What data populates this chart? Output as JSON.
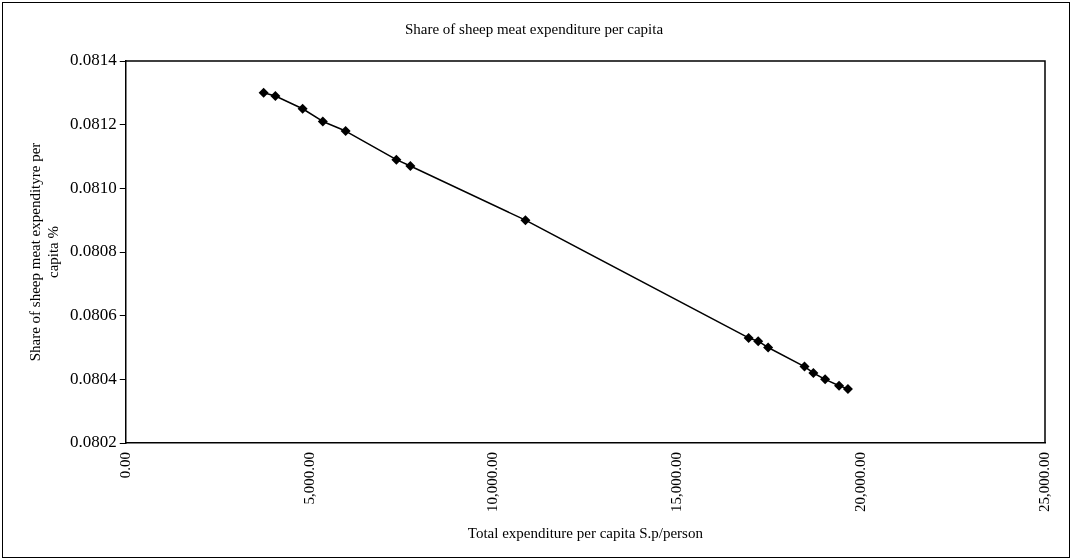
{
  "chart_data": {
    "type": "line",
    "title": "Share of sheep meat expenditure per capita",
    "xlabel": "Total expenditure per capita S.p/person",
    "ylabel": "Share of sheep meat expendityre per capita %",
    "series": [
      {
        "color": "#000000",
        "x": [
          3750,
          4070,
          4810,
          5360,
          5980,
          7360,
          7740,
          10870,
          16940,
          17200,
          17470,
          18460,
          18700,
          19020,
          19400,
          19640
        ],
        "values": [
          0.0813,
          0.08129,
          0.08125,
          0.08121,
          0.08118,
          0.08109,
          0.08107,
          0.0809,
          0.08053,
          0.08052,
          0.0805,
          0.08044,
          0.08042,
          0.0804,
          0.08038,
          0.08037
        ]
      }
    ],
    "xlim": [
      0,
      25000
    ],
    "xticks": [
      {
        "value": 0,
        "label": "0.00"
      },
      {
        "value": 5000,
        "label": "5,000.00"
      },
      {
        "value": 10000,
        "label": "10,000.00"
      },
      {
        "value": 15000,
        "label": "15,000.00"
      },
      {
        "value": 20000,
        "label": "20,000.00"
      },
      {
        "value": 25000,
        "label": "25,000.00"
      }
    ],
    "ylim": [
      0.0802,
      0.0814
    ],
    "yticks": [
      0.0802,
      0.0804,
      0.0806,
      0.0808,
      {
        "value": 0.081,
        "label": "0.0810"
      },
      0.0812,
      0.0814
    ],
    "marker": "diamond",
    "line_style": "solid",
    "grid": false,
    "legend": false
  }
}
